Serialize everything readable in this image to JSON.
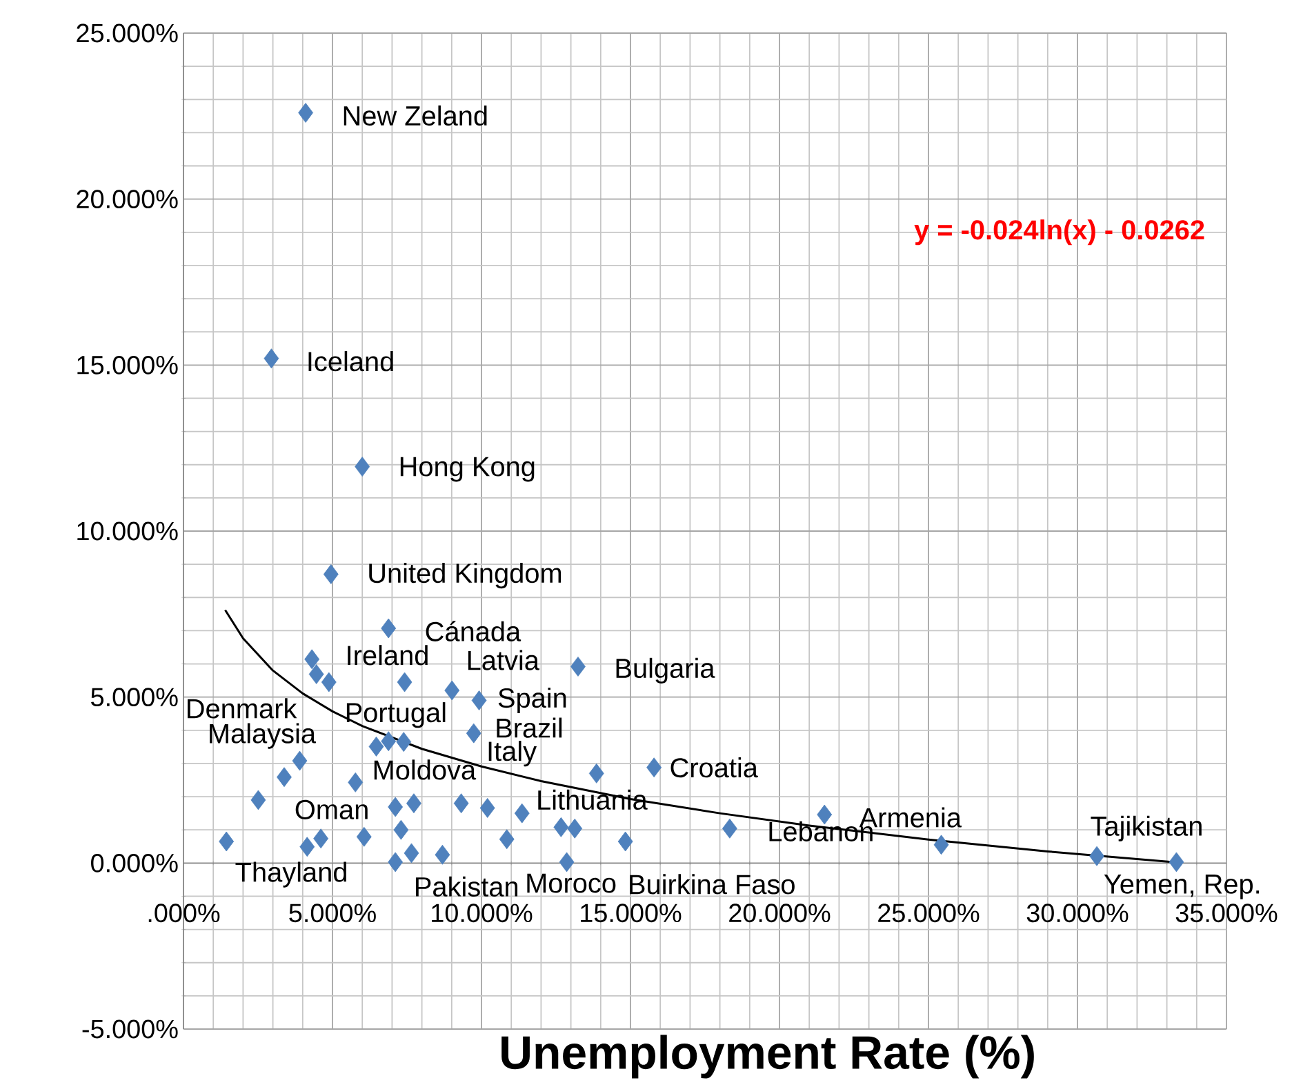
{
  "chart_data": {
    "type": "scatter",
    "xlabel": "Unemployment Rate (%)",
    "xlim": [
      0,
      35
    ],
    "ylim": [
      -5,
      25
    ],
    "xticks": [
      {
        "value": 0,
        "label": ".000%"
      },
      {
        "value": 5,
        "label": "5.000%"
      },
      {
        "value": 10,
        "label": "10.000%"
      },
      {
        "value": 15,
        "label": "15.000%"
      },
      {
        "value": 20,
        "label": "20.000%"
      },
      {
        "value": 25,
        "label": "25.000%"
      },
      {
        "value": 30,
        "label": "30.000%"
      },
      {
        "value": 35,
        "label": "35.000%"
      }
    ],
    "yticks": [
      {
        "value": -5,
        "label": "-5.000%"
      },
      {
        "value": 0,
        "label": "0.000%"
      },
      {
        "value": 5,
        "label": "5.000%"
      },
      {
        "value": 10,
        "label": "10.000%"
      },
      {
        "value": 15,
        "label": "15.000%"
      },
      {
        "value": 20,
        "label": "20.000%"
      },
      {
        "value": 25,
        "label": "25.000%"
      }
    ],
    "grid": true,
    "marker": "diamond",
    "series": [
      {
        "color": "#4f81bd",
        "x": [
          4.1,
          2.95,
          6.0,
          4.95,
          6.88,
          4.31,
          4.46,
          4.88,
          7.42,
          9.01,
          9.92,
          13.24,
          9.74,
          6.88,
          7.39,
          6.47,
          3.9,
          3.38,
          5.77,
          13.86,
          15.79,
          2.51,
          7.11,
          7.73,
          9.32,
          10.2,
          11.36,
          12.67,
          13.13,
          7.3,
          1.44,
          4.15,
          4.61,
          6.06,
          10.85,
          14.83,
          18.33,
          7.11,
          7.65,
          8.69,
          12.86,
          21.51,
          25.43,
          30.65,
          33.32
        ],
        "values": [
          22.6,
          15.2,
          11.94,
          8.7,
          7.07,
          6.14,
          5.69,
          5.45,
          5.45,
          5.2,
          4.9,
          5.92,
          3.91,
          3.67,
          3.65,
          3.51,
          3.08,
          2.59,
          2.43,
          2.7,
          2.88,
          1.9,
          1.69,
          1.8,
          1.8,
          1.66,
          1.5,
          1.08,
          1.04,
          1.0,
          0.65,
          0.49,
          0.74,
          0.79,
          0.72,
          0.65,
          1.04,
          0.03,
          0.3,
          0.25,
          0.03,
          1.46,
          0.55,
          0.21,
          0.03
        ]
      },
      {
        "type": "line",
        "color": "#000000",
        "marker": "none",
        "x": [
          1.4,
          2,
          3,
          4,
          5,
          6,
          8,
          10,
          12,
          15,
          18,
          21,
          25,
          29,
          33.3
        ],
        "values": [
          7.62,
          6.77,
          5.8,
          5.11,
          4.57,
          4.13,
          3.44,
          2.91,
          2.47,
          1.93,
          1.5,
          1.13,
          0.71,
          0.35,
          0.02
        ]
      }
    ],
    "annotations": [
      "y = -0.024ln(x) - 0.0262",
      {
        "text": "New Zeland",
        "x": 4.1,
        "y": 22.6
      },
      {
        "text": "Iceland",
        "x": 2.95,
        "y": 15.2
      },
      {
        "text": "Hong Kong",
        "x": 6.0,
        "y": 11.94
      },
      {
        "text": "United Kingdom",
        "x": 4.95,
        "y": 8.7
      },
      {
        "text": "Cánada",
        "x": 6.88,
        "y": 7.07
      },
      {
        "text": "Ireland",
        "x": 4.31,
        "y": 6.14
      },
      {
        "text": "Denmark",
        "x": 4.88,
        "y": 5.45
      },
      {
        "text": "Latvia",
        "x": 9.01,
        "y": 5.2
      },
      {
        "text": "Spain",
        "x": 9.92,
        "y": 4.9
      },
      {
        "text": "Brazil",
        "x": 9.74,
        "y": 3.91
      },
      {
        "text": "Portugal",
        "x": 6.88,
        "y": 3.67
      },
      {
        "text": "Malaysia",
        "x": 3.9,
        "y": 3.08
      },
      {
        "text": "Moldova",
        "x": 7.11,
        "y": 1.69
      },
      {
        "text": "Oman",
        "x": 2.51,
        "y": 1.9
      },
      {
        "text": "Italy",
        "x": 9.32,
        "y": 1.8
      },
      {
        "text": "Lithuania",
        "x": 10.2,
        "y": 1.66
      },
      {
        "text": "Croatia",
        "x": 15.79,
        "y": 2.88
      },
      {
        "text": "Bulgaria",
        "x": 13.24,
        "y": 5.92
      },
      {
        "text": "Thayland",
        "x": 1.44,
        "y": 0.65
      },
      {
        "text": "Pakistan",
        "x": 8.69,
        "y": 0.25
      },
      {
        "text": "Moroco",
        "x": 10.85,
        "y": 0.72
      },
      {
        "text": "Buirkina Faso",
        "x": 12.86,
        "y": 0.03
      },
      {
        "text": "Lebanon",
        "x": 18.33,
        "y": 1.04
      },
      {
        "text": "Armenia",
        "x": 21.51,
        "y": 1.46
      },
      {
        "text": "Tajikistan",
        "x": 30.65,
        "y": 0.21
      },
      {
        "text": "Yemen, Rep.",
        "x": 33.32,
        "y": 0.03
      }
    ]
  }
}
